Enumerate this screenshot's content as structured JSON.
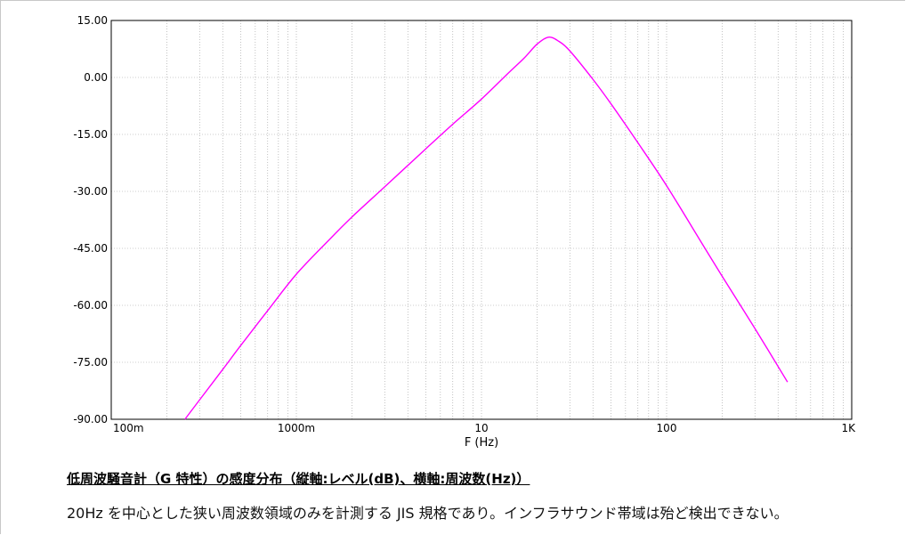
{
  "chart_data": {
    "type": "line",
    "xscale": "log",
    "xlim": [
      0.1,
      1000
    ],
    "ylim": [
      -90,
      15
    ],
    "xlabel": "F (Hz)",
    "ylabel": "",
    "grid": true,
    "x_ticks": [
      {
        "value": 0.1,
        "label": "100m"
      },
      {
        "value": 1,
        "label": "1000m"
      },
      {
        "value": 10,
        "label": "10"
      },
      {
        "value": 100,
        "label": "100"
      },
      {
        "value": 1000,
        "label": "1K"
      }
    ],
    "y_ticks": [
      15,
      0,
      -15,
      -30,
      -45,
      -60,
      -75,
      -90
    ],
    "y_tick_labels": [
      "15.00",
      "0.00",
      "-15.00",
      "-30.00",
      "-45.00",
      "-60.00",
      "-75.00",
      "-90.00"
    ],
    "series": [
      {
        "name": "",
        "color": "#ff00ff",
        "x": [
          0.25,
          0.3,
          0.4,
          0.5,
          0.7,
          1.0,
          1.5,
          2,
          3,
          5,
          7,
          10,
          14,
          17,
          20,
          23,
          26,
          30,
          40,
          50,
          70,
          100,
          150,
          200,
          300,
          450
        ],
        "y": [
          -90,
          -84.9,
          -76.9,
          -70.6,
          -61.4,
          -51.8,
          -42.8,
          -36.7,
          -28.8,
          -18.8,
          -12.3,
          -5.7,
          1.2,
          5.1,
          8.8,
          10.6,
          9.6,
          7.0,
          -0.5,
          -6.9,
          -17.2,
          -28.5,
          -42.5,
          -52.4,
          -66.1,
          -80.2
        ]
      }
    ]
  },
  "caption": {
    "title": "低周波騒音計（G 特性）の感度分布（縦軸:レベル(dB)、横軸:周波数(Hz)）",
    "body": "20Hz を中心とした狭い周波数領域のみを計測する JIS 規格であり。インフラサウンド帯域は殆ど検出できない。"
  }
}
